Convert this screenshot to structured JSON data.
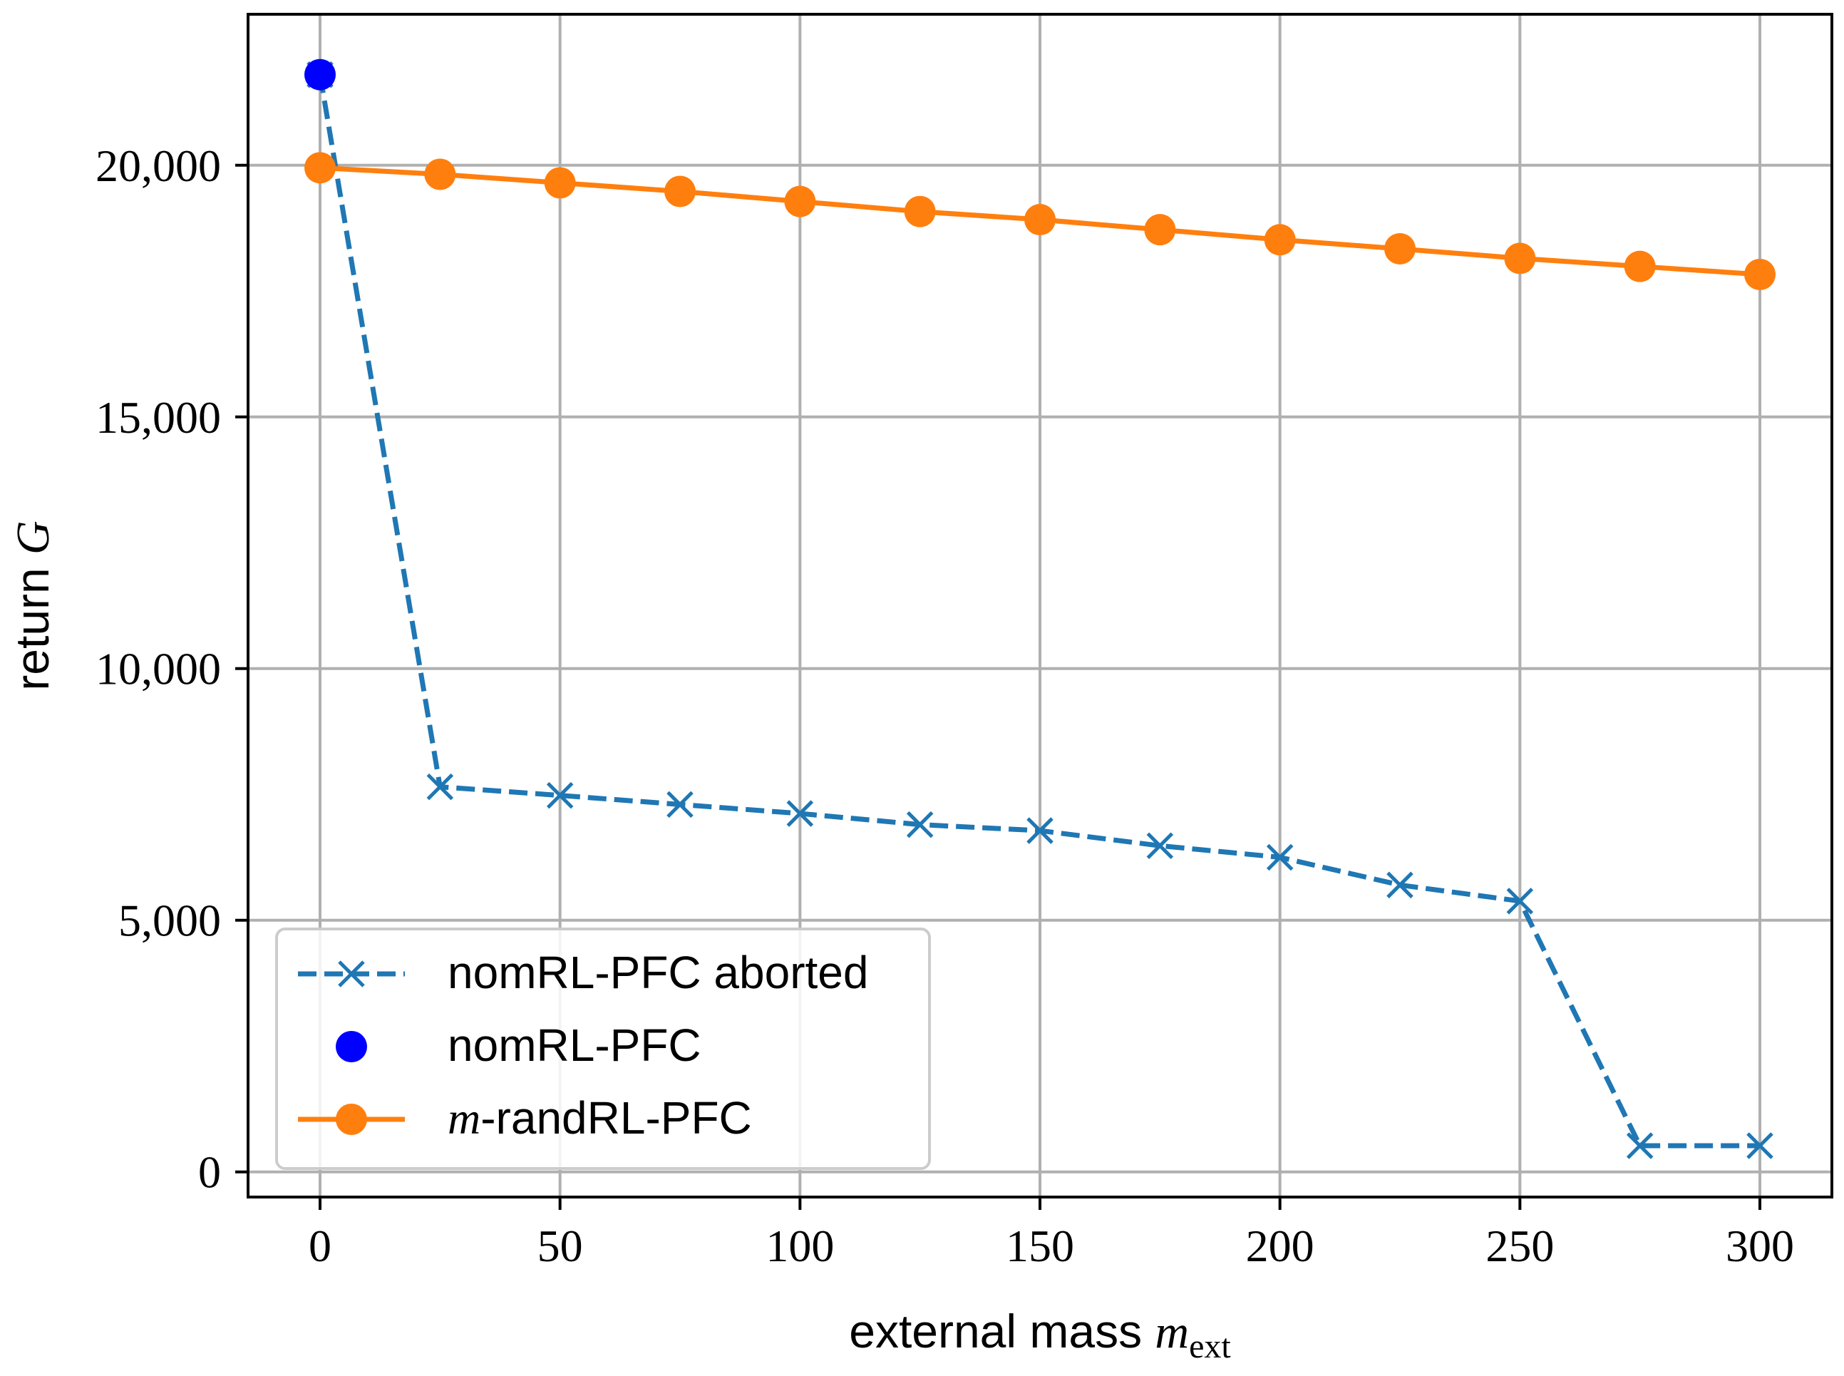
{
  "chart_data": {
    "type": "line",
    "title": "",
    "xlabel": {
      "text": "external mass ",
      "math": "m",
      "sub": "ext"
    },
    "ylabel": {
      "text": "return ",
      "math": "G"
    },
    "xlim": [
      -15,
      315
    ],
    "ylim": [
      -500,
      23000
    ],
    "x_ticks": [
      0,
      50,
      100,
      150,
      200,
      250,
      300
    ],
    "x_tick_labels": [
      "0",
      "50",
      "100",
      "150",
      "200",
      "250",
      "300"
    ],
    "y_ticks": [
      0,
      5000,
      10000,
      15000,
      20000
    ],
    "y_tick_labels": [
      "0",
      "5,000",
      "10,000",
      "15,000",
      "20,000"
    ],
    "grid": true,
    "legend_position": "lower-left",
    "series": [
      {
        "name": "nomRL-PFC aborted",
        "legend_label": "nomRL-PFC aborted",
        "color": "#1f77b4",
        "style": "dashed",
        "marker": "x",
        "x": [
          0,
          25,
          50,
          75,
          100,
          125,
          150,
          175,
          200,
          225,
          250,
          275,
          300
        ],
        "values": [
          21800,
          7650,
          7480,
          7300,
          7120,
          6900,
          6780,
          6480,
          6250,
          5700,
          5380,
          520,
          520
        ]
      },
      {
        "name": "nomRL-PFC",
        "legend_label": "nomRL-PFC",
        "color": "#0000ff",
        "style": "none",
        "marker": "o",
        "x": [
          0
        ],
        "values": [
          21800
        ]
      },
      {
        "name": "m-randRL-PFC",
        "legend_label_math": "m",
        "legend_label_rest": "-randRL-PFC",
        "color": "#ff7f0e",
        "style": "solid",
        "marker": "o",
        "x": [
          0,
          25,
          50,
          75,
          100,
          125,
          150,
          175,
          200,
          225,
          250,
          275,
          300
        ],
        "values": [
          19950,
          19820,
          19650,
          19480,
          19280,
          19080,
          18920,
          18720,
          18520,
          18340,
          18150,
          17990,
          17830
        ]
      }
    ]
  }
}
